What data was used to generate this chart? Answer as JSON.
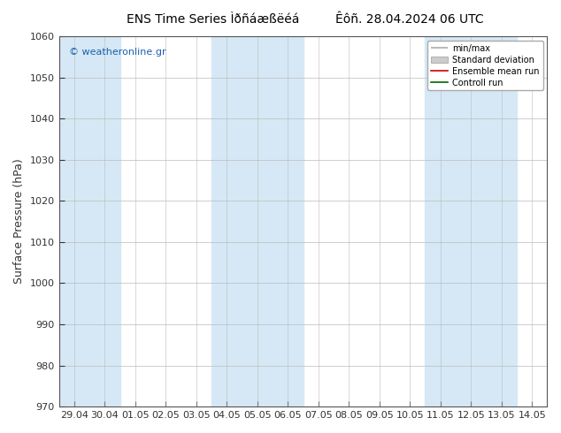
{
  "title_left": "ENS Time Series Ìðñáæßëéá",
  "title_right": "Êôñ. 28.04.2024 06 UTC",
  "ylabel": "Surface Pressure (hPa)",
  "watermark": "© weatheronline.gr",
  "ylim": [
    970,
    1060
  ],
  "yticks": [
    970,
    980,
    990,
    1000,
    1010,
    1020,
    1030,
    1040,
    1050,
    1060
  ],
  "xtick_labels": [
    "29.04",
    "30.04",
    "01.05",
    "02.05",
    "03.05",
    "04.05",
    "05.05",
    "06.05",
    "07.05",
    "08.05",
    "09.05",
    "10.05",
    "11.05",
    "12.05",
    "13.05",
    "14.05"
  ],
  "band_color": "#d6e8f5",
  "background_color": "#ffffff",
  "legend_items": [
    {
      "label": "min/max",
      "color": "#aaaaaa",
      "lw": 1.2
    },
    {
      "label": "Standard deviation",
      "color": "#cccccc",
      "lw": 5
    },
    {
      "label": "Ensemble mean run",
      "color": "#cc0000",
      "lw": 1.2
    },
    {
      "label": "Controll run",
      "color": "#006600",
      "lw": 1.2
    }
  ],
  "grid_color": "#bbbbbb",
  "tick_color": "#333333",
  "label_fontsize": 8,
  "title_fontsize": 10,
  "watermark_fontsize": 8,
  "band_ranges": [
    [
      0,
      1
    ],
    [
      5,
      7
    ],
    [
      12,
      14
    ]
  ]
}
